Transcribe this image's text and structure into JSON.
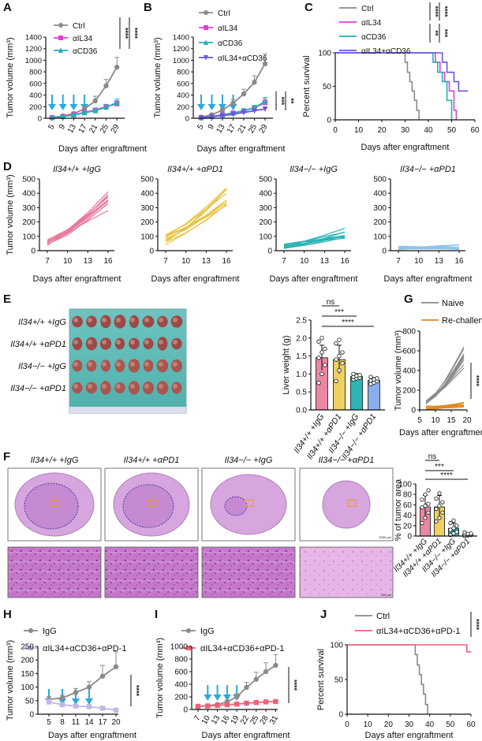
{
  "figure": {
    "panel_letters": [
      "A",
      "B",
      "C",
      "D",
      "E",
      "F",
      "G",
      "H",
      "I",
      "J"
    ],
    "panel_a": {
      "ylabel": "Tumor volume (mm³)",
      "xlabel": "Days after engraftment",
      "legend": [
        "Ctrl",
        "αIL34",
        "αCD36"
      ],
      "sig": [
        "****",
        "****"
      ]
    },
    "panel_b": {
      "ylabel": "Tumor volume (mm³)",
      "xlabel": "Days after engraftment",
      "legend": [
        "Ctrl",
        "αIL34",
        "αCD36",
        "αIL34+αCD36"
      ],
      "sig": [
        "***",
        "**"
      ]
    },
    "panel_c": {
      "ylabel": "Percent survival",
      "xlabel": "Days after engraftment",
      "legend": [
        "Ctrl",
        "αIL34",
        "αCD36",
        "αIL34+αCD36"
      ],
      "sig": [
        "****",
        "****",
        "**",
        "***"
      ]
    },
    "panel_d": {
      "ylabel": "Tumor volume (mm³)",
      "xlabel": "Days after engraftment",
      "titles": [
        "Il34+/+ +IgG",
        "Il34+/+ +αPD1",
        "Il34−/− +IgG",
        "Il34−/− +αPD1"
      ]
    },
    "panel_e": {
      "photo_rows": [
        "Il34+/+ +IgG",
        "Il34+/+ +αPD1",
        "Il34−/− +IgG",
        "Il34−/− +αPD1"
      ],
      "ylabel": "Liver weight (g)",
      "categories": [
        "Il34+/+ +IgG",
        "Il34+/+ +αPD1",
        "Il34−/− +IgG",
        "Il34−/− +αPD1"
      ],
      "sig": [
        "ns",
        "***",
        "****"
      ]
    },
    "panel_f": {
      "titles": [
        "Il34+/+ +IgG",
        "Il34+/+ +αPD1",
        "Il34−/− +IgG",
        "Il34−/− +αPD1"
      ],
      "scale_top": "2000 µm",
      "scale_bottom": "100 µm",
      "ylabel": "% of tumor area",
      "categories": [
        "Il34+/+ +IgG",
        "Il34+/+ +αPD1",
        "Il34−/− +IgG",
        "Il34−/− +αPD1"
      ],
      "sig": [
        "ns",
        "***",
        "****"
      ]
    },
    "panel_g": {
      "ylabel": "Tumor volume (mm³)",
      "xlabel": "Days after engraftment",
      "legend": [
        "Naive",
        "Re-challenged"
      ],
      "sig": [
        "****"
      ]
    },
    "panel_h": {
      "ylabel": "Tumor volume (mm³)",
      "xlabel": "Days after engraftment",
      "legend": [
        "IgG",
        "αIL34+αCD36+αPD-1"
      ],
      "sig": [
        "****"
      ]
    },
    "panel_i": {
      "ylabel": "Tumor volume (mm³)",
      "xlabel": "Days after engraftment",
      "legend": [
        "IgG",
        "αIL34+αCD36+αPD-1"
      ],
      "sig": [
        "****"
      ]
    },
    "panel_j": {
      "ylabel": "Percent survival",
      "xlabel": "Days after engraftment",
      "legend": [
        "Ctrl",
        "αIL34+αCD36+αPD-1"
      ],
      "sig": [
        "****"
      ]
    }
  },
  "colors": {
    "grey": "#8a8a8a",
    "magenta": "#e040d0",
    "teal": "#1fb3b3",
    "purple": "#6b55e0",
    "pink": "#e8789a",
    "yellow": "#e8c23c",
    "cyan": "#2ab4b4",
    "lightblue": "#8ec3e6",
    "orange": "#e08a1e",
    "lavender": "#c3b6e6",
    "rose": "#f0607a",
    "arrow": "#2aa8e0",
    "barpink": "#e888a2",
    "baryellow": "#f0d060",
    "barteal": "#2ab4b4",
    "barblue": "#8aaee8"
  },
  "chart_data": [
    {
      "id": "A",
      "type": "line",
      "xlabel": "Days after engraftment",
      "ylabel": "Tumor volume (mm³)",
      "ylim": [
        0,
        1400
      ],
      "yticks": [
        0,
        200,
        400,
        600,
        800,
        1000,
        1200,
        1400
      ],
      "categories": [
        5,
        9,
        13,
        17,
        21,
        25,
        29
      ],
      "series": [
        {
          "name": "Ctrl",
          "values": [
            10,
            40,
            80,
            160,
            300,
            560,
            880
          ],
          "err": [
            5,
            15,
            30,
            50,
            80,
            110,
            170
          ]
        },
        {
          "name": "αIL34",
          "values": [
            10,
            30,
            60,
            100,
            140,
            200,
            250
          ],
          "err": [
            5,
            10,
            15,
            25,
            30,
            40,
            50
          ]
        },
        {
          "name": "αCD36",
          "values": [
            10,
            30,
            55,
            95,
            130,
            190,
            270
          ],
          "err": [
            5,
            10,
            15,
            25,
            30,
            40,
            60
          ]
        }
      ],
      "arrows_at": [
        5,
        9,
        13,
        17
      ]
    },
    {
      "id": "B",
      "type": "line",
      "xlabel": "Days after engraftment",
      "ylabel": "Tumor volume (mm³)",
      "ylim": [
        0,
        1400
      ],
      "yticks": [
        0,
        200,
        400,
        600,
        800,
        1000,
        1200,
        1400
      ],
      "categories": [
        5,
        9,
        13,
        17,
        21,
        25,
        29
      ],
      "series": [
        {
          "name": "Ctrl",
          "values": [
            20,
            60,
            140,
            260,
            420,
            620,
            940
          ],
          "err": [
            10,
            20,
            40,
            60,
            80,
            110,
            170
          ]
        },
        {
          "name": "αIL34",
          "values": [
            10,
            30,
            60,
            90,
            130,
            180,
            270
          ],
          "err": [
            5,
            10,
            15,
            20,
            30,
            40,
            60
          ]
        },
        {
          "name": "αCD36",
          "values": [
            10,
            30,
            60,
            90,
            130,
            180,
            290
          ],
          "err": [
            5,
            10,
            15,
            20,
            30,
            40,
            70
          ]
        },
        {
          "name": "αIL34+αCD36",
          "values": [
            10,
            25,
            45,
            70,
            100,
            130,
            160
          ],
          "err": [
            5,
            8,
            12,
            15,
            20,
            25,
            30
          ]
        }
      ],
      "arrows_at": [
        5,
        9,
        13,
        17
      ]
    },
    {
      "id": "C",
      "type": "line",
      "step": true,
      "xlabel": "Days after engraftment",
      "ylabel": "Percent survival",
      "xlim": [
        0,
        60
      ],
      "xticks": [
        0,
        10,
        20,
        30,
        40,
        50,
        60
      ],
      "ylim": [
        0,
        100
      ],
      "yticks": [
        0,
        50,
        100
      ],
      "series": [
        {
          "name": "Ctrl",
          "x": [
            0,
            29,
            30,
            31,
            32,
            33,
            34,
            35,
            36
          ],
          "values": [
            100,
            100,
            86,
            71,
            57,
            43,
            29,
            14,
            0
          ]
        },
        {
          "name": "αIL34",
          "x": [
            0,
            41,
            43,
            45,
            47,
            49,
            51,
            52
          ],
          "values": [
            100,
            100,
            86,
            71,
            57,
            43,
            14,
            0
          ]
        },
        {
          "name": "αCD36",
          "x": [
            0,
            40,
            42,
            44,
            46,
            48,
            50
          ],
          "values": [
            100,
            100,
            86,
            71,
            57,
            29,
            0
          ]
        },
        {
          "name": "αIL34+αCD36",
          "x": [
            0,
            44,
            46,
            48,
            51,
            53,
            57
          ],
          "values": [
            100,
            100,
            86,
            71,
            57,
            43,
            43
          ]
        }
      ]
    },
    {
      "id": "D",
      "type": "line",
      "subtype": "spaghetti",
      "xlabel": "Days after engraftment",
      "ylabel": "Tumor volume (mm³)",
      "x": [
        7,
        10,
        13,
        16
      ],
      "ylim": [
        0,
        500
      ],
      "yticks": [
        0,
        100,
        200,
        300,
        400,
        500
      ],
      "panels": [
        {
          "name": "Il34+/+ +IgG",
          "start": [
            30,
            80
          ],
          "end": [
            280,
            420
          ]
        },
        {
          "name": "Il34+/+ +αPD1",
          "start": [
            40,
            110
          ],
          "end": [
            260,
            450
          ]
        },
        {
          "name": "Il34−/− +IgG",
          "start": [
            15,
            50
          ],
          "end": [
            80,
            160
          ]
        },
        {
          "name": "Il34−/− +αPD1",
          "start": [
            5,
            35
          ],
          "end": [
            10,
            45
          ]
        }
      ]
    },
    {
      "id": "E",
      "type": "bar",
      "ylabel": "Liver weight (g)",
      "ylim": [
        0,
        2.5
      ],
      "yticks": [
        0,
        0.5,
        1.0,
        1.5,
        2.0,
        2.5
      ],
      "categories": [
        "Il34+/+ +IgG",
        "Il34+/+ +αPD1",
        "Il34−/− +IgG",
        "Il34−/− +αPD1"
      ],
      "values": [
        1.45,
        1.4,
        0.93,
        0.82
      ],
      "err": [
        0.35,
        0.4,
        0.08,
        0.08
      ],
      "points": [
        [
          0.75,
          1.0,
          1.25,
          1.45,
          1.6,
          1.7,
          1.9,
          2.0
        ],
        [
          0.8,
          1.1,
          1.3,
          1.4,
          1.5,
          1.6,
          1.85,
          1.95
        ],
        [
          0.85,
          0.88,
          0.9,
          0.92,
          0.95,
          0.97,
          1.0
        ],
        [
          0.72,
          0.76,
          0.8,
          0.82,
          0.85,
          0.88,
          0.92
        ]
      ]
    },
    {
      "id": "F",
      "type": "bar",
      "ylabel": "% of tumor area",
      "ylim": [
        0,
        100
      ],
      "yticks": [
        0,
        20,
        40,
        60,
        80,
        100
      ],
      "categories": [
        "Il34+/+ +IgG",
        "Il34+/+ +αPD1",
        "Il34−/− +IgG",
        "Il34−/− +αPD1"
      ],
      "values": [
        56,
        56,
        15,
        3
      ],
      "err": [
        22,
        22,
        10,
        3
      ],
      "points": [
        [
          25,
          35,
          45,
          55,
          58,
          62,
          70,
          80,
          88
        ],
        [
          28,
          35,
          45,
          52,
          58,
          65,
          72,
          82
        ],
        [
          2,
          5,
          8,
          12,
          15,
          20,
          25,
          30
        ],
        [
          0,
          1,
          2,
          3,
          4,
          5,
          7
        ]
      ]
    },
    {
      "id": "G",
      "type": "line",
      "subtype": "spaghetti",
      "xlabel": "Days after engraftment",
      "ylabel": "Tumor volume (mm³)",
      "x": [
        7,
        10,
        13,
        16,
        19
      ],
      "xlim": [
        5,
        20
      ],
      "xticks": [
        5,
        10,
        15,
        20
      ],
      "ylim": [
        0,
        800
      ],
      "yticks": [
        0,
        200,
        400,
        600,
        800
      ],
      "series": [
        {
          "name": "Naive",
          "start": [
            50,
            100
          ],
          "end": [
            400,
            650
          ]
        },
        {
          "name": "Re-challenged",
          "start": [
            5,
            40
          ],
          "end": [
            20,
            80
          ]
        }
      ]
    },
    {
      "id": "H",
      "type": "line",
      "xlabel": "Days after engraftment",
      "ylabel": "Tumor volume (mm³)",
      "ylim": [
        0,
        250
      ],
      "yticks": [
        0,
        50,
        100,
        150,
        200,
        250
      ],
      "categories": [
        5,
        8,
        11,
        14,
        17,
        20
      ],
      "series": [
        {
          "name": "IgG",
          "values": [
            55,
            60,
            80,
            100,
            140,
            175
          ],
          "err": [
            10,
            10,
            15,
            20,
            40,
            55
          ]
        },
        {
          "name": "αIL34+αCD36+αPD-1",
          "values": [
            45,
            35,
            30,
            28,
            22,
            15
          ],
          "err": [
            10,
            8,
            6,
            5,
            4,
            3
          ]
        }
      ],
      "arrows_at": [
        5,
        8,
        11,
        14
      ]
    },
    {
      "id": "I",
      "type": "line",
      "xlabel": "Days after engraftment",
      "ylabel": "Tumor volume (mm³)",
      "ylim": [
        0,
        1000
      ],
      "yticks": [
        0,
        200,
        400,
        600,
        800,
        1000
      ],
      "categories": [
        7,
        10,
        13,
        16,
        19,
        22,
        25,
        28,
        31
      ],
      "series": [
        {
          "name": "IgG",
          "values": [
            50,
            60,
            80,
            120,
            200,
            350,
            480,
            600,
            700
          ],
          "err": [
            10,
            15,
            20,
            30,
            50,
            80,
            110,
            140,
            170
          ]
        },
        {
          "name": "αIL34+αCD36+αPD-1",
          "values": [
            50,
            55,
            65,
            75,
            85,
            100,
            110,
            120,
            125
          ],
          "err": [
            5,
            8,
            10,
            12,
            15,
            15,
            15,
            15,
            15
          ]
        }
      ],
      "arrows_at": [
        10,
        13,
        16,
        19
      ]
    },
    {
      "id": "J",
      "type": "line",
      "step": true,
      "xlabel": "Days after engraftment",
      "ylabel": "Percent survival",
      "xlim": [
        0,
        60
      ],
      "xticks": [
        0,
        10,
        20,
        30,
        40,
        50,
        60
      ],
      "ylim": [
        0,
        100
      ],
      "yticks": [
        0,
        50,
        100
      ],
      "series": [
        {
          "name": "Ctrl",
          "x": [
            0,
            32,
            33,
            34,
            35,
            36,
            37,
            38,
            39
          ],
          "values": [
            100,
            100,
            86,
            71,
            57,
            43,
            29,
            14,
            0
          ]
        },
        {
          "name": "αIL34+αCD36+αPD-1",
          "x": [
            0,
            57,
            58,
            60
          ],
          "values": [
            100,
            100,
            90,
            90
          ]
        }
      ]
    }
  ]
}
